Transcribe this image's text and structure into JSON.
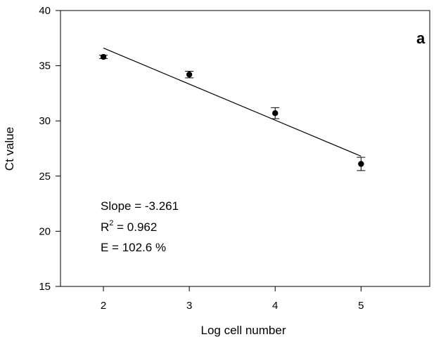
{
  "chart_data": {
    "type": "scatter",
    "panel_label": "a",
    "xlabel": "Log cell number",
    "ylabel": "Ct value",
    "xlim": [
      1.5,
      5.8
    ],
    "ylim": [
      15,
      40
    ],
    "x_ticks": [
      2,
      3,
      4,
      5
    ],
    "y_ticks": [
      15,
      20,
      25,
      30,
      35,
      40
    ],
    "grid": false,
    "points": [
      {
        "x": 2,
        "y": 35.8,
        "err": 0.15
      },
      {
        "x": 3,
        "y": 34.2,
        "err": 0.3
      },
      {
        "x": 4,
        "y": 30.7,
        "err": 0.5
      },
      {
        "x": 5,
        "y": 26.1,
        "err": 0.6
      }
    ],
    "fit_line": {
      "x": [
        2,
        5
      ],
      "y": [
        36.6,
        26.8
      ]
    },
    "annotations": {
      "slope": "Slope = -3.261",
      "r2_prefix": "R",
      "r2_sup": "2",
      "r2_value": " = 0.962",
      "efficiency": "E = 102.6 %"
    }
  }
}
